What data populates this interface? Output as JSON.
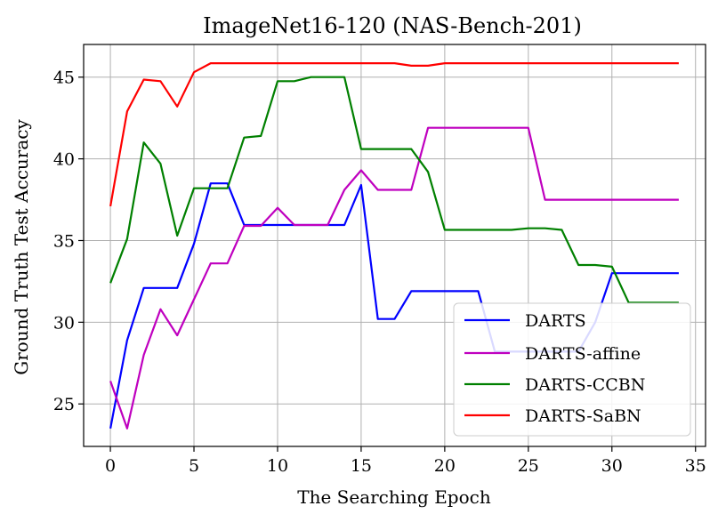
{
  "chart_data": {
    "type": "line",
    "title": "ImageNet16-120 (NAS-Bench-201)",
    "xlabel": "The Searching Epoch",
    "ylabel": "Ground Truth Test Accuracy",
    "xlim": [
      -1.6,
      35.6
    ],
    "ylim": [
      22.4,
      47.0
    ],
    "xticks": [
      0,
      5,
      10,
      15,
      20,
      25,
      30,
      35
    ],
    "yticks": [
      25,
      30,
      35,
      40,
      45
    ],
    "grid": true,
    "legend_position": "lower-right",
    "x": [
      0,
      1,
      2,
      3,
      4,
      5,
      6,
      7,
      8,
      9,
      10,
      11,
      12,
      13,
      14,
      15,
      16,
      17,
      18,
      19,
      20,
      21,
      22,
      23,
      24,
      25,
      26,
      27,
      28,
      29,
      30,
      31,
      32,
      33,
      34
    ],
    "series": [
      {
        "name": "DARTS",
        "color": "#0000ff",
        "values": [
          23.5,
          28.9,
          32.1,
          32.1,
          32.1,
          34.8,
          38.5,
          38.5,
          35.95,
          35.95,
          35.95,
          35.95,
          35.95,
          35.95,
          35.95,
          38.4,
          30.2,
          30.2,
          31.9,
          31.9,
          31.9,
          31.9,
          31.9,
          28.2,
          28.2,
          28.2,
          28.2,
          28.2,
          28.2,
          30.0,
          33.0,
          33.0,
          33.0,
          33.0,
          33.0
        ]
      },
      {
        "name": "DARTS-affine",
        "color": "#bf00bf",
        "values": [
          26.4,
          23.5,
          28.0,
          30.8,
          29.2,
          31.4,
          33.6,
          33.6,
          35.9,
          35.9,
          37.0,
          35.95,
          35.95,
          35.95,
          38.1,
          39.3,
          38.1,
          38.1,
          38.1,
          41.9,
          41.9,
          41.9,
          41.9,
          41.9,
          41.9,
          41.9,
          37.5,
          37.5,
          37.5,
          37.5,
          37.5,
          37.5,
          37.5,
          37.5,
          37.5
        ]
      },
      {
        "name": "DARTS-CCBN",
        "color": "#008000",
        "values": [
          32.4,
          35.1,
          41.0,
          39.7,
          35.3,
          38.2,
          38.2,
          38.2,
          41.3,
          41.4,
          44.75,
          44.75,
          45.0,
          45.0,
          45.0,
          40.6,
          40.6,
          40.6,
          40.6,
          39.2,
          35.65,
          35.65,
          35.65,
          35.65,
          35.65,
          35.75,
          35.75,
          35.65,
          33.5,
          33.5,
          33.4,
          31.2,
          31.2,
          31.2,
          31.2
        ]
      },
      {
        "name": "DARTS-SaBN",
        "color": "#ff0000",
        "values": [
          37.1,
          42.9,
          44.85,
          44.75,
          43.2,
          45.3,
          45.85,
          45.85,
          45.85,
          45.85,
          45.85,
          45.85,
          45.85,
          45.85,
          45.85,
          45.85,
          45.85,
          45.85,
          45.7,
          45.7,
          45.85,
          45.85,
          45.85,
          45.85,
          45.85,
          45.85,
          45.85,
          45.85,
          45.85,
          45.85,
          45.85,
          45.85,
          45.85,
          45.85,
          45.85
        ]
      }
    ]
  }
}
